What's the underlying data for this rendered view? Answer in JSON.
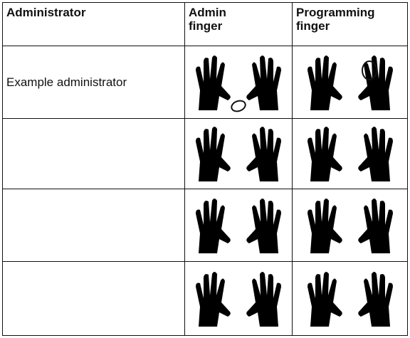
{
  "table": {
    "header": [
      "Administrator",
      "Admin finger",
      "Programming finger"
    ],
    "rows": [
      [
        "Example administrator"
      ]
    ]
  }
}
